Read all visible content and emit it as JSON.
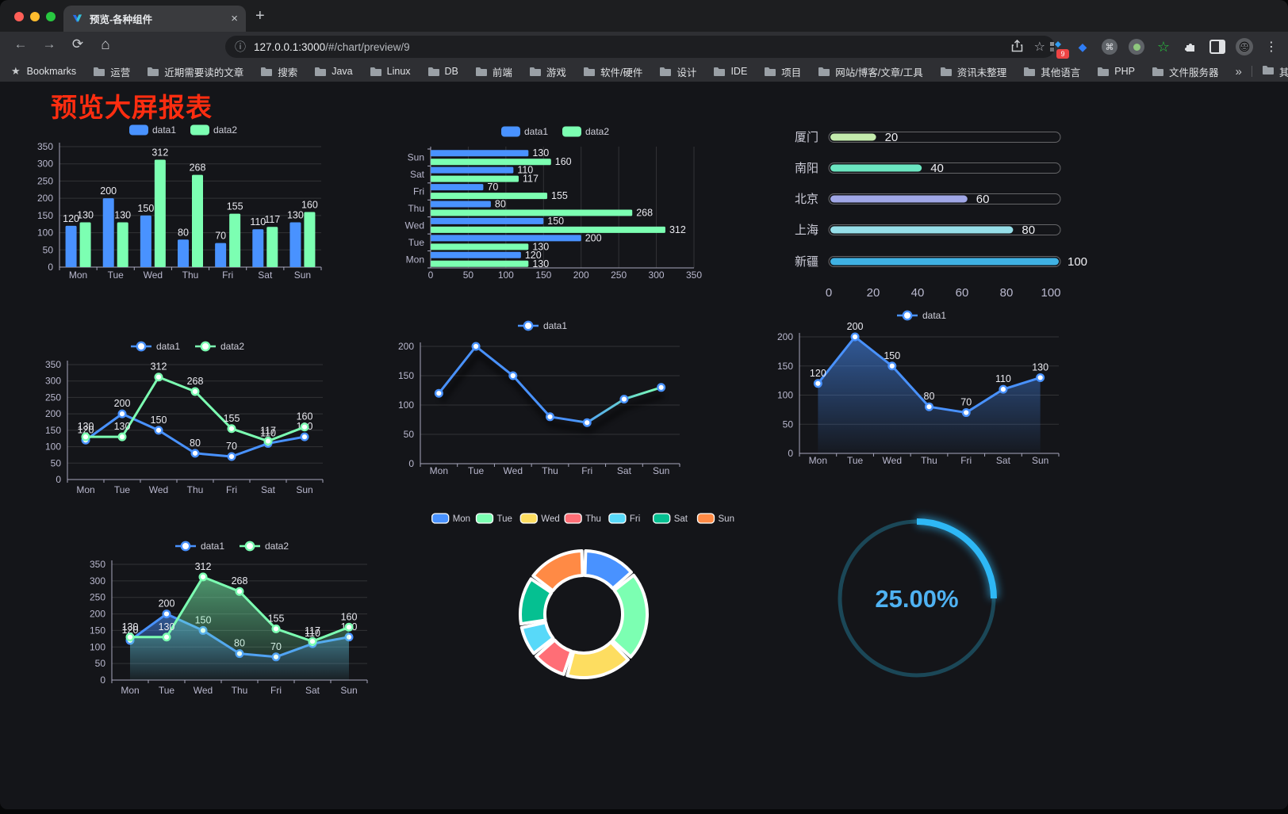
{
  "browser": {
    "tab_title": "预览-各种组件",
    "close_tab": "×",
    "new_tab": "+",
    "url_host": "127.0.0.1:3000",
    "url_path": "/#/chart/preview/9",
    "extension_badge": "9"
  },
  "bookmarks": {
    "root_label": "Bookmarks",
    "items": [
      "运营",
      "近期需要读的文章",
      "搜索",
      "Java",
      "Linux",
      "DB",
      "前端",
      "游戏",
      "软件/硬件",
      "设计",
      "IDE",
      "项目",
      "网站/博客/文章/工具",
      "资讯未整理",
      "其他语言",
      "PHP",
      "文件服务器"
    ],
    "overflow_chevron": "»",
    "other_bookmarks": "其他书签"
  },
  "page": {
    "title": "预览大屏报表",
    "title_color": "#fe2d10"
  },
  "chart_data": [
    {
      "id": "grouped-bar",
      "type": "bar",
      "categories": [
        "Mon",
        "Tue",
        "Wed",
        "Thu",
        "Fri",
        "Sat",
        "Sun"
      ],
      "series": [
        {
          "name": "data1",
          "color": "#4992ff",
          "values": [
            120,
            200,
            150,
            80,
            70,
            110,
            130
          ]
        },
        {
          "name": "data2",
          "color": "#7cffb2",
          "values": [
            130,
            130,
            312,
            268,
            155,
            117,
            160
          ]
        }
      ],
      "ylim": [
        0,
        350
      ],
      "ystep": 50,
      "show_labels": true,
      "legend_position": "top"
    },
    {
      "id": "horizontal-bar",
      "type": "bar-horizontal",
      "categories": [
        "Mon",
        "Tue",
        "Wed",
        "Thu",
        "Fri",
        "Sat",
        "Sun"
      ],
      "series": [
        {
          "name": "data1",
          "color": "#4992ff",
          "values": [
            120,
            200,
            150,
            80,
            70,
            110,
            130
          ]
        },
        {
          "name": "data2",
          "color": "#7cffb2",
          "values": [
            130,
            130,
            312,
            268,
            155,
            117,
            160
          ]
        }
      ],
      "xlim": [
        0,
        350
      ],
      "xstep": 50,
      "show_labels": true,
      "legend_position": "top"
    },
    {
      "id": "city-progress",
      "type": "progress",
      "items": [
        {
          "label": "厦门",
          "value": 20,
          "color": "#c4ebad"
        },
        {
          "label": "南阳",
          "value": 40,
          "color": "#6be6c1"
        },
        {
          "label": "北京",
          "value": 60,
          "color": "#a0a7e6"
        },
        {
          "label": "上海",
          "value": 80,
          "color": "#96dee8"
        },
        {
          "label": "新疆",
          "value": 100,
          "color": "#3fb1e3"
        }
      ],
      "xlim": [
        0,
        100
      ],
      "xticks": [
        0,
        20,
        40,
        60,
        80,
        100
      ]
    },
    {
      "id": "two-line",
      "type": "line",
      "categories": [
        "Mon",
        "Tue",
        "Wed",
        "Thu",
        "Fri",
        "Sat",
        "Sun"
      ],
      "series": [
        {
          "name": "data1",
          "color": "#4992ff",
          "values": [
            120,
            200,
            150,
            80,
            70,
            110,
            130
          ]
        },
        {
          "name": "data2",
          "color": "#7cffb2",
          "values": [
            130,
            130,
            312,
            268,
            155,
            117,
            160
          ]
        }
      ],
      "ylim": [
        0,
        350
      ],
      "ystep": 50,
      "show_labels": true
    },
    {
      "id": "gradient-line",
      "type": "line",
      "categories": [
        "Mon",
        "Tue",
        "Wed",
        "Thu",
        "Fri",
        "Sat",
        "Sun"
      ],
      "series": [
        {
          "name": "data1",
          "color": "#4992ff",
          "gradient_to": "#7cffb2",
          "values": [
            120,
            200,
            150,
            80,
            70,
            110,
            130
          ]
        }
      ],
      "ylim": [
        0,
        200
      ],
      "ystep": 50,
      "show_labels": false
    },
    {
      "id": "area-line",
      "type": "line",
      "categories": [
        "Mon",
        "Tue",
        "Wed",
        "Thu",
        "Fri",
        "Sat",
        "Sun"
      ],
      "series": [
        {
          "name": "data1",
          "color": "#4992ff",
          "area": true,
          "values": [
            120,
            200,
            150,
            80,
            70,
            110,
            130
          ]
        }
      ],
      "ylim": [
        0,
        200
      ],
      "ystep": 50,
      "show_labels": true
    },
    {
      "id": "two-area-line",
      "type": "line",
      "categories": [
        "Mon",
        "Tue",
        "Wed",
        "Thu",
        "Fri",
        "Sat",
        "Sun"
      ],
      "series": [
        {
          "name": "data1",
          "color": "#4992ff",
          "area": true,
          "values": [
            120,
            200,
            150,
            80,
            70,
            110,
            130
          ]
        },
        {
          "name": "data2",
          "color": "#7cffb2",
          "area": true,
          "values": [
            130,
            130,
            312,
            268,
            155,
            117,
            160
          ]
        }
      ],
      "ylim": [
        0,
        350
      ],
      "ystep": 50,
      "show_labels": true
    },
    {
      "id": "donut",
      "type": "pie",
      "categories": [
        "Mon",
        "Tue",
        "Wed",
        "Thu",
        "Fri",
        "Sat",
        "Sun"
      ],
      "values": [
        120,
        200,
        150,
        80,
        70,
        110,
        130
      ],
      "colors": [
        "#4992ff",
        "#7cffb2",
        "#fddd60",
        "#ff6e76",
        "#58d9f9",
        "#05c091",
        "#ff8a45"
      ],
      "legend_position": "top"
    },
    {
      "id": "gauge",
      "type": "gauge",
      "value": 25,
      "display": "25.00%",
      "color": "#2eb8f6",
      "track_color": "#1b4757"
    }
  ]
}
